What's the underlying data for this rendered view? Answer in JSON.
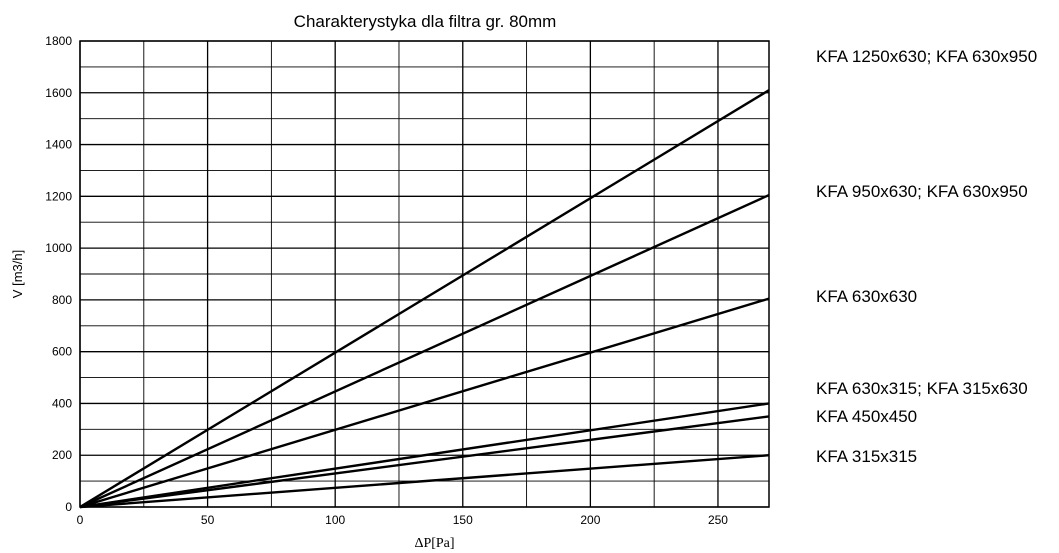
{
  "chart_data": {
    "type": "line",
    "title": "Charakterystyka dla filtra gr. 80mm",
    "xlabel": "ΔP[Pa]",
    "ylabel": "V [m3/h]",
    "xlim": [
      0,
      270
    ],
    "ylim": [
      0,
      1800
    ],
    "x_ticks": [
      0,
      50,
      100,
      150,
      200,
      250
    ],
    "y_ticks": [
      0,
      200,
      400,
      600,
      800,
      1000,
      1200,
      1400,
      1600,
      1800
    ],
    "x_minor_step": 25,
    "y_minor_step": 100,
    "grid": true,
    "line_color": "#000000",
    "series": [
      {
        "name": "KFA 1250x630; KFA 630x950",
        "x": [
          0,
          270
        ],
        "y": [
          0,
          1610
        ]
      },
      {
        "name": "KFA 950x630; KFA 630x950",
        "x": [
          0,
          270
        ],
        "y": [
          0,
          1205
        ]
      },
      {
        "name": "KFA 630x630",
        "x": [
          0,
          270
        ],
        "y": [
          0,
          805
        ]
      },
      {
        "name": "KFA 630x315; KFA 315x630",
        "x": [
          0,
          270
        ],
        "y": [
          0,
          400
        ]
      },
      {
        "name": "KFA 450x450",
        "x": [
          0,
          270
        ],
        "y": [
          0,
          350
        ]
      },
      {
        "name": "KFA 315x315",
        "x": [
          0,
          270
        ],
        "y": [
          0,
          200
        ]
      }
    ]
  }
}
